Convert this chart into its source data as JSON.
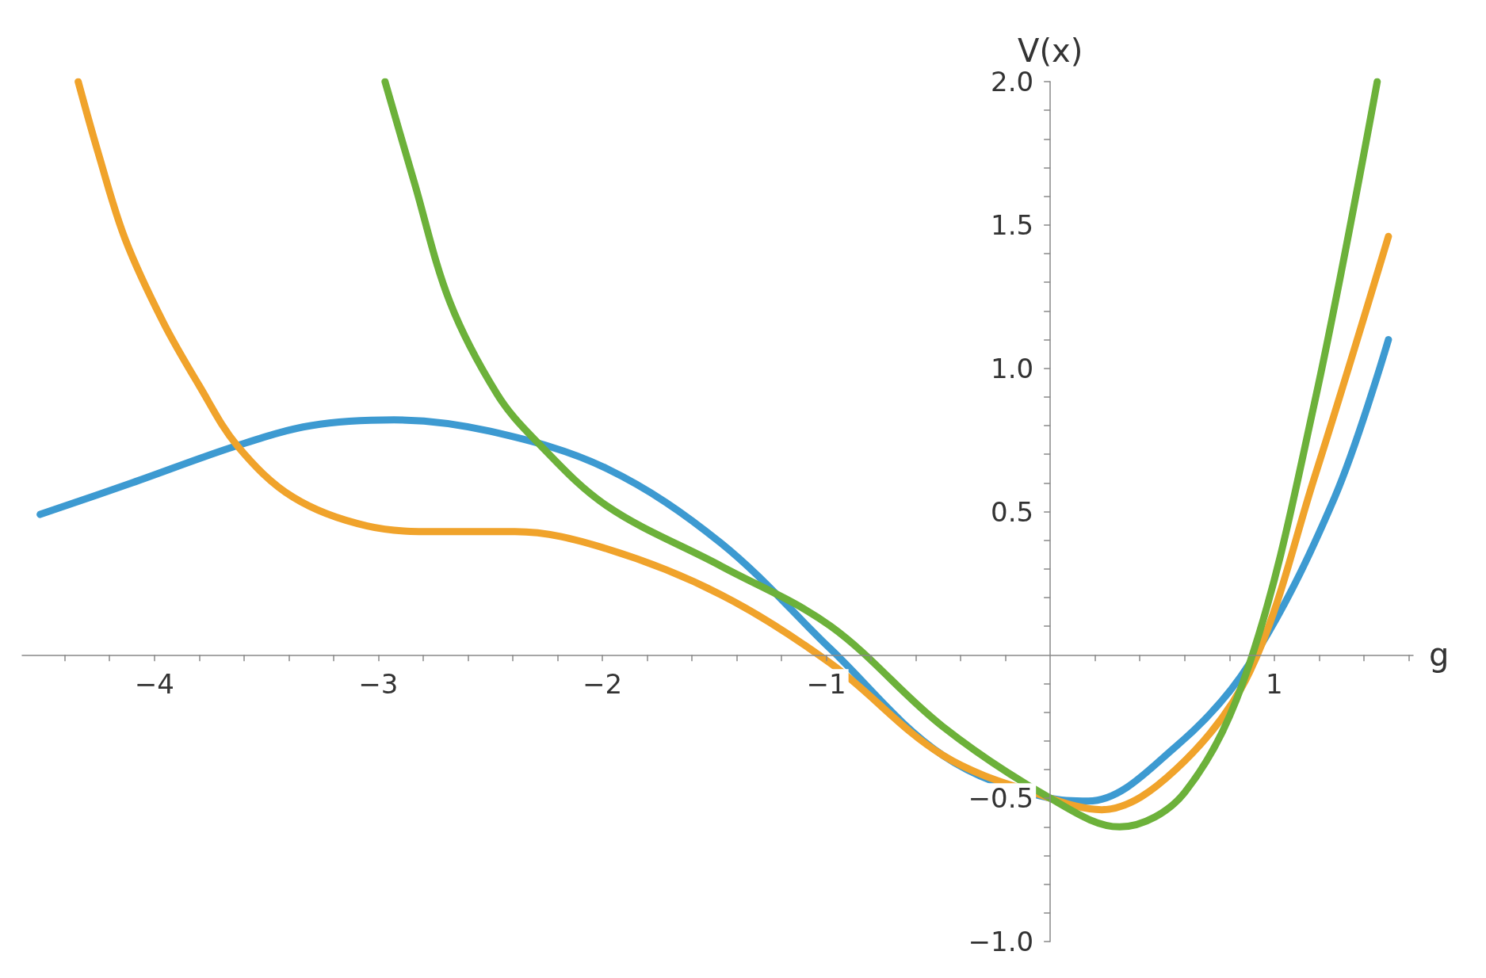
{
  "chart_data": {
    "type": "line",
    "xlabel": "g",
    "ylabel": "V(x)",
    "xlim": [
      -4.59,
      1.62
    ],
    "ylim": [
      -1.0,
      2.0
    ],
    "xticks": [
      {
        "value": -4.4,
        "label": null
      },
      {
        "value": -4.2,
        "label": null
      },
      {
        "value": -4,
        "label": "−4"
      },
      {
        "value": -3.8,
        "label": null
      },
      {
        "value": -3.6,
        "label": null
      },
      {
        "value": -3.4,
        "label": null
      },
      {
        "value": -3.2,
        "label": null
      },
      {
        "value": -3,
        "label": "−3"
      },
      {
        "value": -2.8,
        "label": null
      },
      {
        "value": -2.6,
        "label": null
      },
      {
        "value": -2.4,
        "label": null
      },
      {
        "value": -2.2,
        "label": null
      },
      {
        "value": -2,
        "label": "−2"
      },
      {
        "value": -1.8,
        "label": null
      },
      {
        "value": -1.6,
        "label": null
      },
      {
        "value": -1.4,
        "label": null
      },
      {
        "value": -1.2,
        "label": null
      },
      {
        "value": -1,
        "label": "−1"
      },
      {
        "value": -0.8,
        "label": null
      },
      {
        "value": -0.6,
        "label": null
      },
      {
        "value": -0.4,
        "label": null
      },
      {
        "value": -0.2,
        "label": null
      },
      {
        "value": 0.2,
        "label": null
      },
      {
        "value": 0.4,
        "label": null
      },
      {
        "value": 0.6,
        "label": null
      },
      {
        "value": 0.8,
        "label": null
      },
      {
        "value": 1,
        "label": "1"
      },
      {
        "value": 1.2,
        "label": null
      },
      {
        "value": 1.4,
        "label": null
      },
      {
        "value": 1.6,
        "label": null
      }
    ],
    "yticks": [
      {
        "value": -1.0,
        "label": "−1.0"
      },
      {
        "value": -0.9,
        "label": null
      },
      {
        "value": -0.8,
        "label": null
      },
      {
        "value": -0.7,
        "label": null
      },
      {
        "value": -0.6,
        "label": null
      },
      {
        "value": -0.5,
        "label": "−0.5"
      },
      {
        "value": -0.4,
        "label": null
      },
      {
        "value": -0.3,
        "label": null
      },
      {
        "value": -0.2,
        "label": null
      },
      {
        "value": -0.1,
        "label": null
      },
      {
        "value": 0.1,
        "label": null
      },
      {
        "value": 0.2,
        "label": null
      },
      {
        "value": 0.3,
        "label": null
      },
      {
        "value": 0.4,
        "label": null
      },
      {
        "value": 0.5,
        "label": "0.5"
      },
      {
        "value": 0.6,
        "label": null
      },
      {
        "value": 0.7,
        "label": null
      },
      {
        "value": 0.8,
        "label": null
      },
      {
        "value": 0.9,
        "label": null
      },
      {
        "value": 1.0,
        "label": "1.0"
      },
      {
        "value": 1.1,
        "label": null
      },
      {
        "value": 1.2,
        "label": null
      },
      {
        "value": 1.3,
        "label": null
      },
      {
        "value": 1.4,
        "label": null
      },
      {
        "value": 1.5,
        "label": "1.5"
      },
      {
        "value": 1.6,
        "label": null
      },
      {
        "value": 1.7,
        "label": null
      },
      {
        "value": 1.8,
        "label": null
      },
      {
        "value": 1.9,
        "label": null
      },
      {
        "value": 2.0,
        "label": "2.0"
      }
    ],
    "grid": false,
    "marker": "none",
    "line_style": "solid",
    "series": [
      {
        "color": "#3d9ad1",
        "x": [
          -4.51,
          -4.1,
          -3.63,
          -3.3,
          -2.93,
          -2.5,
          -1.98,
          -1.47,
          -0.98,
          -0.48,
          0,
          0.17,
          0.56,
          0.89,
          1.27,
          1.51
        ],
        "values": [
          0.49,
          0.6,
          0.73,
          0.8,
          0.82,
          0.78,
          0.65,
          0.39,
          0.02,
          -0.35,
          -0.5,
          -0.51,
          -0.32,
          -0.03,
          0.55,
          1.1
        ]
      },
      {
        "color": "#f0a32b",
        "x": [
          -4.34,
          -4.25,
          -4.13,
          -3.96,
          -3.8,
          -3.63,
          -3.38,
          -3.05,
          -2.72,
          -2.39,
          -1.98,
          -1.47,
          -0.98,
          -0.48,
          0,
          0.23,
          0.56,
          0.89,
          1.18,
          1.51
        ],
        "values": [
          2.0,
          1.75,
          1.45,
          1.16,
          0.94,
          0.73,
          0.55,
          0.45,
          0.43,
          0.43,
          0.37,
          0.21,
          -0.03,
          -0.35,
          -0.5,
          -0.54,
          -0.4,
          -0.06,
          0.62,
          1.46
        ]
      },
      {
        "color": "#6cb13a",
        "x": [
          -2.97,
          -2.84,
          -2.68,
          -2.47,
          -2.3,
          -1.98,
          -1.47,
          -0.98,
          -0.48,
          0,
          0.31,
          0.6,
          0.89,
          1.18,
          1.46
        ],
        "values": [
          2.0,
          1.65,
          1.23,
          0.91,
          0.75,
          0.52,
          0.31,
          0.1,
          -0.25,
          -0.5,
          -0.6,
          -0.48,
          -0.03,
          0.88,
          2.0
        ]
      }
    ]
  }
}
